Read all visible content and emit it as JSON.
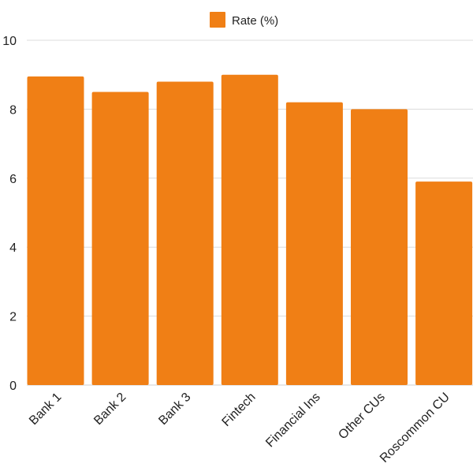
{
  "chart_data": {
    "type": "bar",
    "categories": [
      "Bank 1",
      "Bank 2",
      "Bank 3",
      "Fintech",
      "Financial Ins",
      "Other CUs",
      "Roscommon CU"
    ],
    "series": [
      {
        "name": "Rate (%)",
        "values": [
          8.95,
          8.5,
          8.8,
          9.0,
          8.2,
          8.0,
          5.9
        ],
        "color": "#f07f15"
      }
    ],
    "ylim": [
      0,
      10
    ],
    "yticks": [
      0,
      2,
      4,
      6,
      8,
      10
    ],
    "grid": true,
    "legend_position": "top-center"
  },
  "colors": {
    "bar": "#f07f15",
    "grid": "#dcdcdc",
    "axis": "#cfcfcf",
    "text": "#222222"
  }
}
